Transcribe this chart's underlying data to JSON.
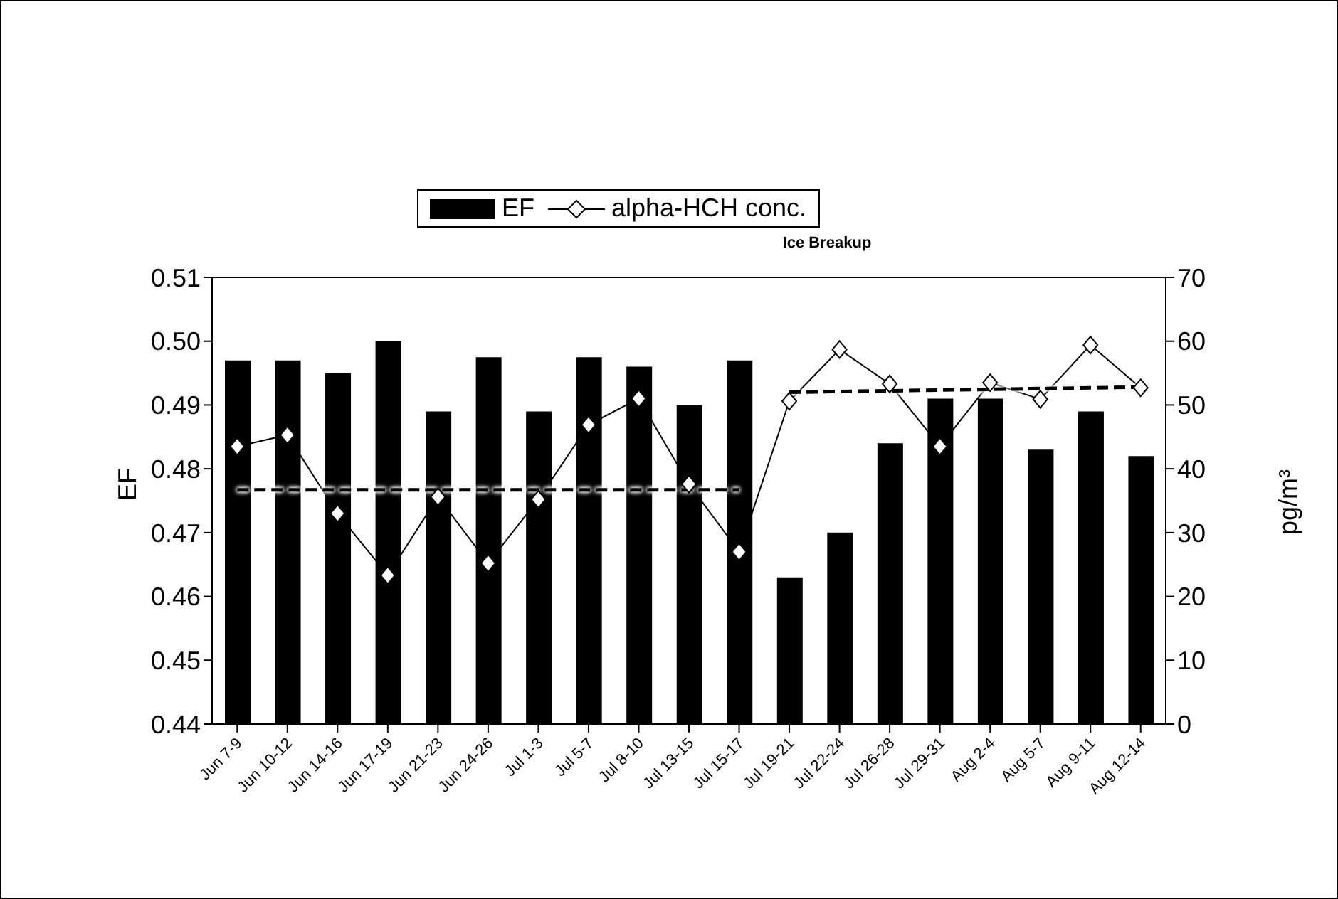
{
  "chart_data": {
    "type": "bar",
    "categories": [
      "Jun 7-9",
      "Jun 10-12",
      "Jun 14-16",
      "Jun 17-19",
      "Jun 21-23",
      "Jun 24-26",
      "Jul 1-3",
      "Jul 5-7",
      "Jul 8-10",
      "Jul 13-15",
      "Jul 15-17",
      "Jul 19-21",
      "Jul 22-24",
      "Jul 26-28",
      "Jul 29-31",
      "Aug 2-4",
      "Aug 5-7",
      "Aug 9-11",
      "Aug 12-14"
    ],
    "series": [
      {
        "name": "EF",
        "color": "#000000",
        "values": [
          0.497,
          0.497,
          0.495,
          0.5,
          0.489,
          0.4975,
          0.489,
          0.4975,
          0.496,
          0.49,
          0.497,
          0.463,
          0.47,
          0.484,
          0.491,
          0.491,
          0.483,
          0.489,
          0.482
        ]
      },
      {
        "name": "alpha-HCH conc.",
        "type": "line",
        "axis": "y2",
        "color": "#000000",
        "marker": "diamond",
        "line_style": "solid",
        "values": [
          43.5,
          45.3,
          33.0,
          23.3,
          35.6,
          25.2,
          35.2,
          46.9,
          51.0,
          37.6,
          27.0,
          50.6,
          58.7,
          53.3,
          43.5,
          53.5,
          50.9,
          59.4,
          52.7
        ]
      },
      {
        "type": "line",
        "axis": "y2",
        "color": "#000000",
        "marker": "none",
        "line_style": "dashed",
        "values": [
          36.7,
          null,
          null,
          null,
          null,
          null,
          null,
          null,
          null,
          null,
          36.7,
          null,
          null,
          null,
          null,
          null,
          null,
          null,
          null
        ]
      },
      {
        "type": "line",
        "axis": "y2",
        "color": "#000000",
        "marker": "none",
        "line_style": "dashed",
        "values": [
          null,
          null,
          null,
          null,
          null,
          null,
          null,
          null,
          null,
          null,
          null,
          52.0,
          null,
          null,
          null,
          null,
          null,
          null,
          52.8
        ]
      }
    ],
    "ylabel": "EF",
    "y2label": "pg/m³",
    "ylim": [
      0.44,
      0.51
    ],
    "yticks": [
      0.44,
      0.45,
      0.46,
      0.47,
      0.48,
      0.49,
      {
        "value": 0.5,
        "label": "0.50"
      },
      0.51
    ],
    "y2lim": [
      0,
      70
    ],
    "y2ticks": [
      0,
      10,
      20,
      30,
      40,
      50,
      60,
      70
    ],
    "annotations": [
      "Ice Breakup"
    ],
    "legend": "top",
    "grid": false
  }
}
